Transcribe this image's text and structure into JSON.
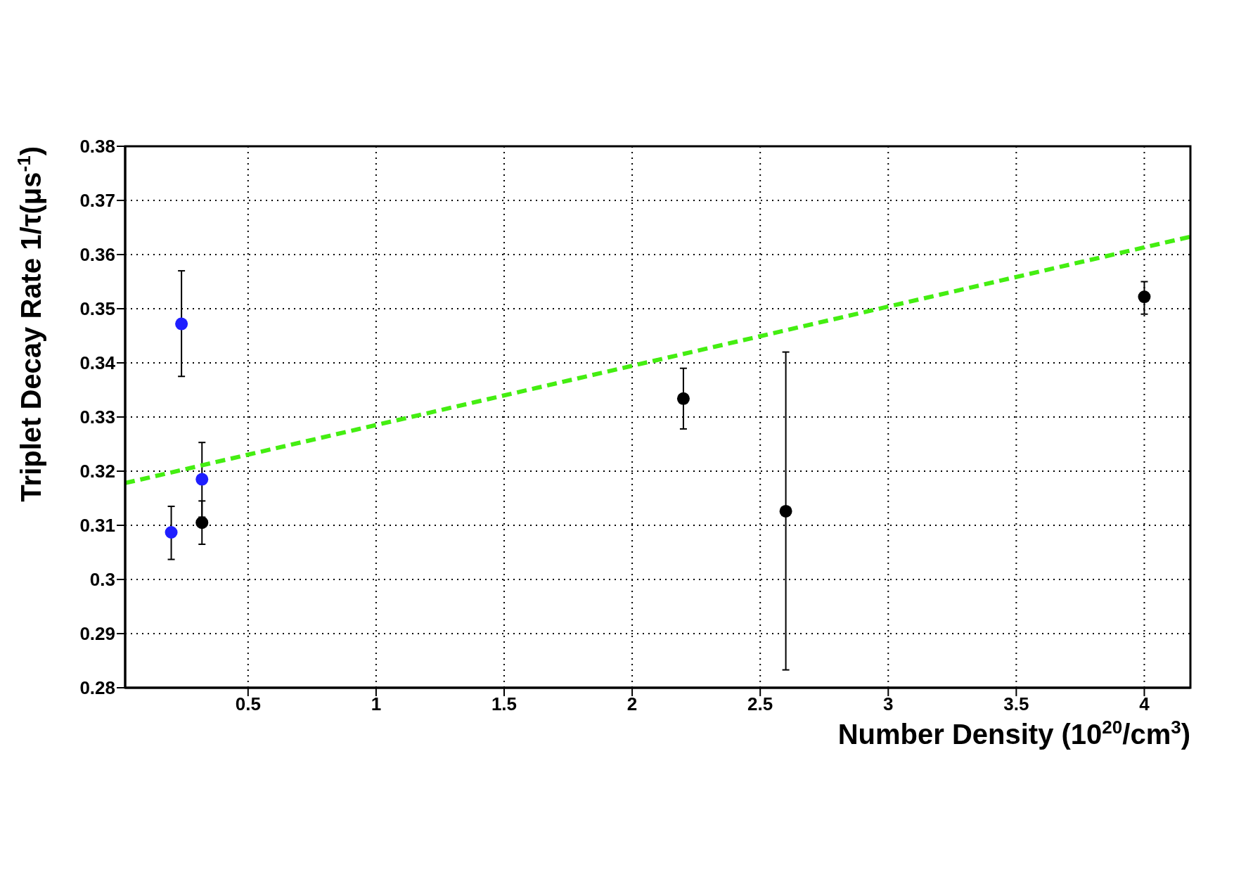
{
  "chart_data": {
    "type": "scatter",
    "xlabel": "Number Density (10$^{20}$/cm$^{3}$)",
    "ylabel": "Triplet Decay Rate 1/τ(μs$^{-1}$)",
    "xlim": [
      0.02,
      4.18
    ],
    "xticks": [
      0.5,
      1,
      1.5,
      2,
      2.5,
      3,
      3.5,
      4
    ],
    "ylim": [
      0.28,
      0.38
    ],
    "yticks": [
      0.28,
      0.29,
      0.3,
      0.31,
      0.32,
      0.33,
      0.34,
      0.35,
      0.36,
      0.37,
      0.38
    ],
    "grid": true,
    "marker": "circle",
    "series": [
      {
        "color": "#1f1fff",
        "x": [
          0.2,
          0.24,
          0.32
        ],
        "values": [
          0.3087,
          0.3472,
          0.3185
        ],
        "errors": [
          [
            0.3037,
            0.3135
          ],
          [
            0.3375,
            0.357
          ],
          [
            0.3115,
            0.3253
          ]
        ]
      },
      {
        "color": "#000000",
        "x": [
          0.32,
          2.2,
          2.6,
          4.0
        ],
        "values": [
          0.3105,
          0.3334,
          0.3126,
          0.3522
        ],
        "errors": [
          [
            0.3065,
            0.3145
          ],
          [
            0.3278,
            0.339
          ],
          [
            0.2833,
            0.342
          ],
          [
            0.349,
            0.355
          ]
        ]
      },
      {
        "type": "line",
        "color": "#44ee11",
        "line_style": "dashed",
        "marker": "none",
        "x": [
          0.02,
          4.18
        ],
        "values": [
          0.3178,
          0.3633
        ]
      }
    ]
  }
}
